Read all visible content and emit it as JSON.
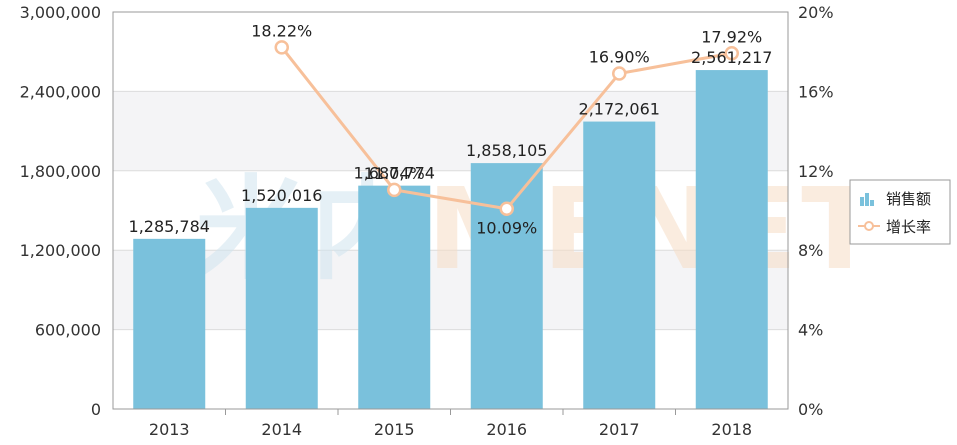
{
  "chart_data": {
    "type": "bar+line",
    "categories": [
      "2013",
      "2014",
      "2015",
      "2016",
      "2017",
      "2018"
    ],
    "series": [
      {
        "name": "销售额",
        "type": "bar",
        "axis": "left",
        "values": [
          1285784,
          1520016,
          1687774,
          1858105,
          2172061,
          2561217
        ],
        "labels": [
          "1,285,784",
          "1,520,016",
          "1,687,774",
          "1,858,105",
          "2,172,061",
          "2,561,217"
        ],
        "color": "#7ac1dc"
      },
      {
        "name": "增长率",
        "type": "line",
        "axis": "right",
        "values": [
          null,
          18.22,
          11.04,
          10.09,
          16.9,
          17.92
        ],
        "labels": [
          "",
          "18.22%",
          "11.04%",
          "10.09%",
          "16.90%",
          "17.92%"
        ],
        "color": "#f7c09a"
      }
    ],
    "y_left": {
      "ylim": [
        0,
        3000000
      ],
      "ticks": [
        0,
        600000,
        1200000,
        1800000,
        2400000,
        3000000
      ],
      "tick_labels": [
        "0",
        "600,000",
        "1,200,000",
        "1,800,000",
        "2,400,000",
        "3,000,000"
      ]
    },
    "y_right": {
      "ylim": [
        0,
        20
      ],
      "ticks": [
        0,
        4,
        8,
        12,
        16,
        20
      ],
      "tick_labels": [
        "0%",
        "4%",
        "8%",
        "12%",
        "16%",
        "20%"
      ]
    },
    "grid": true,
    "legend": {
      "placement": "right",
      "items": [
        "销售额",
        "增长率"
      ]
    },
    "watermark": "米内MENET"
  }
}
